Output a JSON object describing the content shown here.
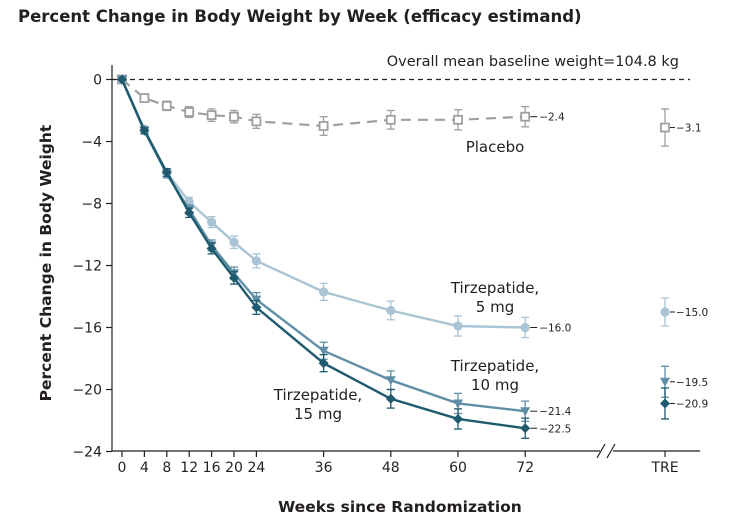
{
  "chart_data": {
    "type": "line",
    "title": "Percent Change in Body Weight by Week (efficacy estimand)",
    "xlabel": "Weeks since Randomization",
    "ylabel": "Percent Change in Body Weight",
    "x": [
      0,
      4,
      8,
      12,
      16,
      20,
      24,
      36,
      48,
      60,
      72
    ],
    "x_tick_labels": [
      "0",
      "4",
      "8",
      "12",
      "16",
      "20",
      "24",
      "36",
      "48",
      "60",
      "72"
    ],
    "tre_label": "TRE",
    "y_ticks": [
      0,
      -4,
      -8,
      -12,
      -16,
      -20,
      -24
    ],
    "y_tick_labels": [
      "0",
      "−4",
      "−8",
      "−12",
      "−16",
      "−20",
      "−24"
    ],
    "ylim": [
      -24,
      0
    ],
    "annotation": "Overall mean baseline weight=104.8 kg",
    "legend": "none",
    "grid": false,
    "series": [
      {
        "name": "Placebo",
        "label_lines": [
          "Placebo"
        ],
        "color": "#9d9fa2",
        "marker": "square-open",
        "dashed": true,
        "values": [
          0,
          -1.2,
          -1.7,
          -2.1,
          -2.3,
          -2.4,
          -2.7,
          -3.0,
          -2.6,
          -2.6,
          -2.4
        ],
        "ci": [
          0,
          0.25,
          0.3,
          0.35,
          0.4,
          0.4,
          0.45,
          0.6,
          0.6,
          0.65,
          0.65
        ],
        "end_label": "−2.4",
        "tre_value": -3.1,
        "tre_ci": 1.2,
        "tre_label": "−3.1"
      },
      {
        "name": "Tirzepatide, 5 mg",
        "label_lines": [
          "Tirzepatide,",
          "5 mg"
        ],
        "color": "#a9c4d4",
        "marker": "circle",
        "dashed": false,
        "values": [
          0,
          -3.2,
          -6.0,
          -7.9,
          -9.2,
          -10.5,
          -11.7,
          -13.7,
          -14.9,
          -15.9,
          -16.0
        ],
        "ci": [
          0,
          0.2,
          0.25,
          0.3,
          0.35,
          0.4,
          0.45,
          0.55,
          0.6,
          0.65,
          0.65
        ],
        "end_label": "−16.0",
        "tre_value": -15.0,
        "tre_ci": 0.9,
        "tre_label": "−15.0"
      },
      {
        "name": "Tirzepatide, 10 mg",
        "label_lines": [
          "Tirzepatide,",
          "10 mg"
        ],
        "color": "#5f8fa6",
        "marker": "triangle-down",
        "dashed": false,
        "values": [
          0,
          -3.3,
          -6.1,
          -8.4,
          -10.7,
          -12.5,
          -14.2,
          -17.5,
          -19.4,
          -20.9,
          -21.4
        ],
        "ci": [
          0,
          0.2,
          0.25,
          0.3,
          0.35,
          0.4,
          0.45,
          0.55,
          0.6,
          0.65,
          0.65
        ],
        "end_label": "−21.4",
        "tre_value": -19.5,
        "tre_ci": 1.0,
        "tre_label": "−19.5"
      },
      {
        "name": "Tirzepatide, 15 mg",
        "label_lines": [
          "Tirzepatide,",
          "15 mg"
        ],
        "color": "#1f5a6f",
        "marker": "diamond",
        "dashed": false,
        "values": [
          0,
          -3.3,
          -6.0,
          -8.6,
          -10.9,
          -12.8,
          -14.7,
          -18.3,
          -20.6,
          -21.9,
          -22.5
        ],
        "ci": [
          0,
          0.2,
          0.25,
          0.3,
          0.35,
          0.4,
          0.45,
          0.55,
          0.6,
          0.65,
          0.65
        ],
        "end_label": "−22.5",
        "tre_value": -20.9,
        "tre_ci": 1.0,
        "tre_label": "−20.9"
      }
    ]
  }
}
